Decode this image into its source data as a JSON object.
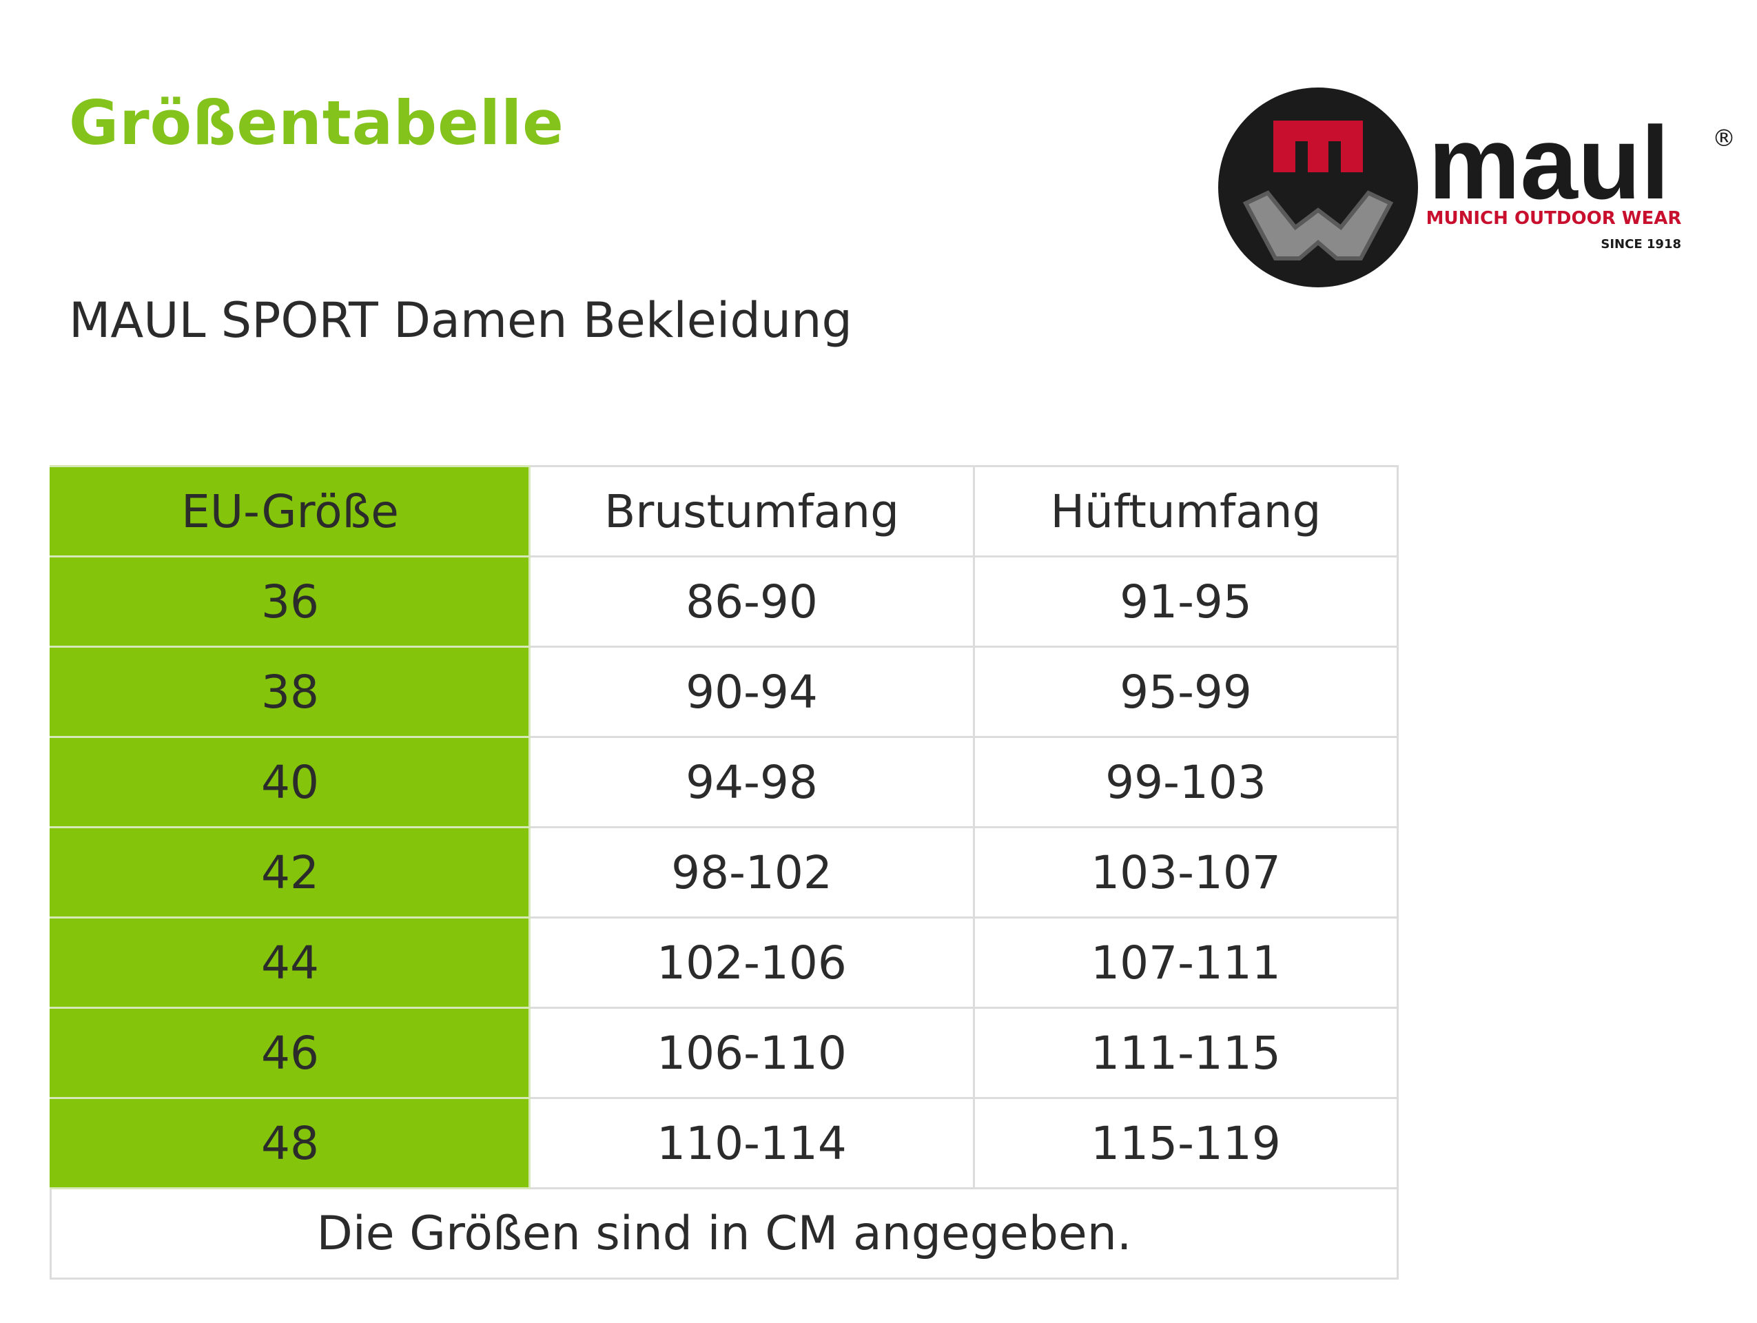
{
  "header": {
    "title": "Größentabelle",
    "subtitle": "MAUL SPORT Damen Bekleidung"
  },
  "logo": {
    "icon": "maul-logo-icon",
    "letter": "m",
    "wordmark": "maul",
    "registered": "®",
    "tagline": "MUNICH OUTDOOR WEAR",
    "since": "SINCE 1918"
  },
  "table": {
    "headers": [
      "EU-Größe",
      "Brustumfang",
      "Hüftumfang"
    ],
    "rows": [
      [
        "36",
        "86-90",
        "91-95"
      ],
      [
        "38",
        "90-94",
        "95-99"
      ],
      [
        "40",
        "94-98",
        "99-103"
      ],
      [
        "42",
        "98-102",
        "103-107"
      ],
      [
        "44",
        "102-106",
        "107-111"
      ],
      [
        "46",
        "106-110",
        "111-115"
      ],
      [
        "48",
        "110-114",
        "115-119"
      ]
    ],
    "note": "Die Größen sind in CM angegeben."
  },
  "colors": {
    "accent_green": "#84c31c",
    "size_column_green": "#84c40a",
    "logo_red": "#c8102e",
    "logo_black": "#1b1b1b",
    "logo_gray": "#8a8a8a"
  }
}
